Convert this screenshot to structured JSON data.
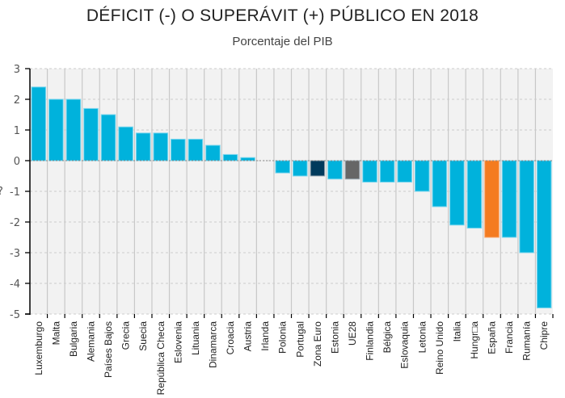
{
  "chart_data": {
    "type": "bar",
    "title": "DÉFICIT (-) O SUPERÁVIT (+) PÚBLICO EN 2018",
    "subtitle": "Porcentaje del PIB",
    "xlabel": "",
    "ylabel": "",
    "ylim": [
      -5,
      3
    ],
    "yticks": [
      3,
      2,
      1,
      0,
      -1,
      -2,
      -3,
      -4,
      -5
    ],
    "grid": true,
    "legend": "none",
    "categories": [
      "Luxemburgo",
      "Malta",
      "Bulgaria",
      "Alemania",
      "Países Bajos",
      "Grecia",
      "Suecia",
      "República Checa",
      "Eslovenia",
      "Lituania",
      "Dinamarca",
      "Croacia",
      "Austria",
      "Irlanda",
      "Polonia",
      "Portugal",
      "Zona Euro",
      "Estonia",
      "UE28",
      "Finlandia",
      "Bélgica",
      "Eslovaquia",
      "Letonia",
      "Reino Unido",
      "Italia",
      "Hungr□a",
      "España",
      "Francia",
      "Rumanía",
      "Chipre"
    ],
    "values": [
      2.4,
      2.0,
      2.0,
      1.7,
      1.5,
      1.1,
      0.9,
      0.9,
      0.7,
      0.7,
      0.5,
      0.2,
      0.1,
      0.0,
      -0.4,
      -0.5,
      -0.5,
      -0.6,
      -0.6,
      -0.7,
      -0.7,
      -0.7,
      -1.0,
      -1.5,
      -2.1,
      -2.2,
      -2.5,
      -2.5,
      -3.0,
      -4.8
    ],
    "highlight": {
      "Zona Euro": "#003A5C",
      "UE28": "#666666",
      "España": "#F47B20"
    },
    "default_color": "#00B2DC"
  },
  "colors": {
    "bar": "#00B2DC",
    "bar_border": "#7AD6EE",
    "plot_bg": "#F2F2F2",
    "grid_vertical": "#C8C8C8",
    "grid_horizontal": "#CCCCCC",
    "axis": "#000000"
  },
  "partial_ylabel": "?"
}
